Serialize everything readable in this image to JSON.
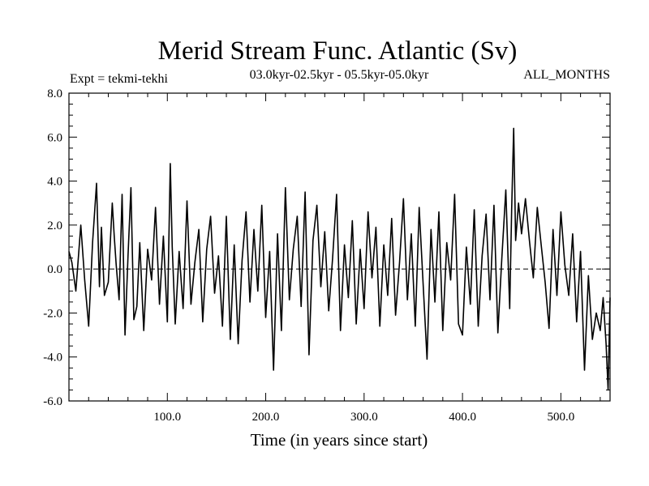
{
  "chart_data": {
    "type": "line",
    "title": "Merid Stream Func. Atlantic (Sv)",
    "subtitle_left": "Expt = tekmi-tekhi",
    "subtitle_center": "03.0kyr-02.5kyr - 05.5kyr-05.0kyr",
    "subtitle_right": "ALL_MONTHS",
    "xlabel": "Time (in years since start)",
    "ylabel": "",
    "xlim": [
      0,
      550
    ],
    "ylim": [
      -6,
      8
    ],
    "xticks": [
      100,
      200,
      300,
      400,
      500
    ],
    "xtick_labels": [
      "100.0",
      "200.0",
      "300.0",
      "400.0",
      "500.0"
    ],
    "yticks": [
      8,
      6,
      4,
      2,
      0,
      -2,
      -4,
      -6
    ],
    "ytick_labels": [
      "8.0",
      "6.0",
      "4.0",
      "2.0",
      "0.0",
      "-2.0",
      "-4.0",
      "-6.0"
    ],
    "zero_line": true,
    "grid": false,
    "series": [
      {
        "x": [
          0,
          3,
          7,
          12,
          16,
          20,
          24,
          28,
          31,
          33,
          36,
          40,
          44,
          46,
          48,
          51,
          54,
          57,
          60,
          63,
          66,
          69,
          72,
          76,
          80,
          84,
          88,
          92,
          96,
          100,
          103,
          105,
          108,
          112,
          116,
          120,
          124,
          128,
          132,
          136,
          140,
          144,
          148,
          152,
          156,
          160,
          164,
          168,
          172,
          176,
          180,
          184,
          188,
          192,
          196,
          200,
          204,
          208,
          212,
          216,
          220,
          224,
          228,
          232,
          236,
          240,
          244,
          248,
          252,
          256,
          260,
          264,
          268,
          272,
          276,
          280,
          284,
          288,
          292,
          296,
          300,
          304,
          308,
          312,
          316,
          320,
          324,
          328,
          332,
          336,
          340,
          344,
          348,
          352,
          356,
          360,
          364,
          368,
          372,
          376,
          380,
          384,
          388,
          392,
          396,
          400,
          404,
          408,
          412,
          416,
          420,
          424,
          428,
          432,
          436,
          440,
          444,
          448,
          450,
          452,
          454,
          457,
          460,
          464,
          468,
          472,
          476,
          480,
          484,
          488,
          492,
          496,
          500,
          504,
          508,
          512,
          516,
          520,
          524,
          528,
          532,
          536,
          540,
          543,
          546,
          548,
          550
        ],
        "y": [
          0.8,
          0.3,
          -1.0,
          2.0,
          -0.5,
          -2.6,
          1.2,
          3.9,
          -0.8,
          1.9,
          -1.2,
          -0.6,
          3.0,
          1.5,
          0.2,
          -1.4,
          3.4,
          -3.0,
          0.6,
          3.7,
          -2.3,
          -1.7,
          1.2,
          -2.8,
          0.9,
          -0.5,
          2.8,
          -1.6,
          1.5,
          -2.4,
          4.8,
          1.0,
          -2.5,
          0.8,
          -1.8,
          3.1,
          -1.6,
          0.3,
          1.8,
          -2.4,
          0.9,
          2.4,
          -1.1,
          0.6,
          -2.6,
          2.4,
          -3.2,
          1.1,
          -3.4,
          0.4,
          2.6,
          -1.5,
          1.8,
          -1.0,
          2.9,
          -2.2,
          0.8,
          -4.6,
          1.6,
          -2.8,
          3.7,
          -1.4,
          0.9,
          2.4,
          -1.7,
          3.5,
          -3.9,
          1.3,
          2.9,
          -0.8,
          1.7,
          -1.9,
          0.5,
          3.4,
          -2.8,
          1.1,
          -1.3,
          2.2,
          -2.5,
          0.9,
          -1.8,
          2.6,
          -0.4,
          1.9,
          -2.6,
          1.1,
          -1.2,
          2.3,
          -2.1,
          0.3,
          3.2,
          -1.4,
          1.6,
          -2.6,
          2.8,
          -0.7,
          -4.1,
          1.8,
          -1.5,
          2.6,
          -2.8,
          1.2,
          -0.5,
          3.4,
          -2.5,
          -3.0,
          1.0,
          -1.6,
          2.7,
          -2.6,
          0.6,
          2.5,
          -1.4,
          2.9,
          -2.9,
          0.5,
          3.6,
          -1.8,
          2.7,
          6.4,
          1.3,
          3.0,
          1.6,
          3.2,
          1.3,
          -0.4,
          2.8,
          1.1,
          -0.6,
          -2.7,
          1.8,
          -1.2,
          2.6,
          0.2,
          -1.2,
          1.6,
          -2.4,
          0.8,
          -4.6,
          -0.3,
          -3.2,
          -2.0,
          -2.8,
          -1.3,
          -3.4,
          -5.5,
          -1.3
        ]
      }
    ]
  }
}
